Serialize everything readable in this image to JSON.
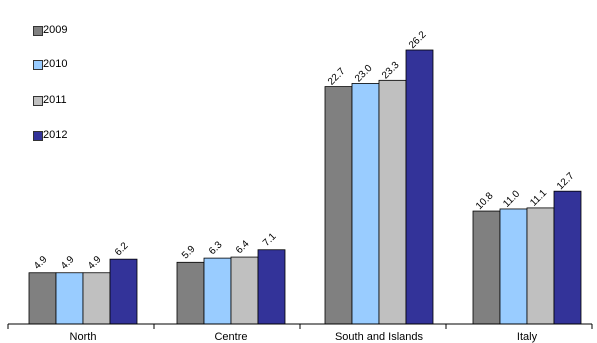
{
  "chart_data": {
    "type": "bar",
    "title": "",
    "xlabel": "",
    "ylabel": "",
    "categories": [
      "North",
      "Centre",
      "South and Islands",
      "Italy"
    ],
    "series": [
      {
        "name": "2009",
        "color": "#808080",
        "values": [
          4.9,
          5.9,
          22.7,
          10.8
        ]
      },
      {
        "name": "2010",
        "color": "#99ccff",
        "values": [
          4.9,
          6.3,
          23.0,
          11.0
        ]
      },
      {
        "name": "2011",
        "color": "#c0c0c0",
        "values": [
          4.9,
          6.4,
          23.3,
          11.1
        ]
      },
      {
        "name": "2012",
        "color": "#333399",
        "values": [
          6.2,
          7.1,
          26.2,
          12.7
        ]
      }
    ],
    "value_labels": [
      [
        "4.9",
        "4.9",
        "4.9",
        "6.2"
      ],
      [
        "5.9",
        "6.3",
        "6.4",
        "7.1"
      ],
      [
        "22.7",
        "23.0",
        "23.3",
        "26.2"
      ],
      [
        "10.8",
        "11.0",
        "11.1",
        "12.7"
      ]
    ],
    "ylim": [
      0,
      26.2
    ],
    "grid": false,
    "legend_position": "top-left"
  }
}
